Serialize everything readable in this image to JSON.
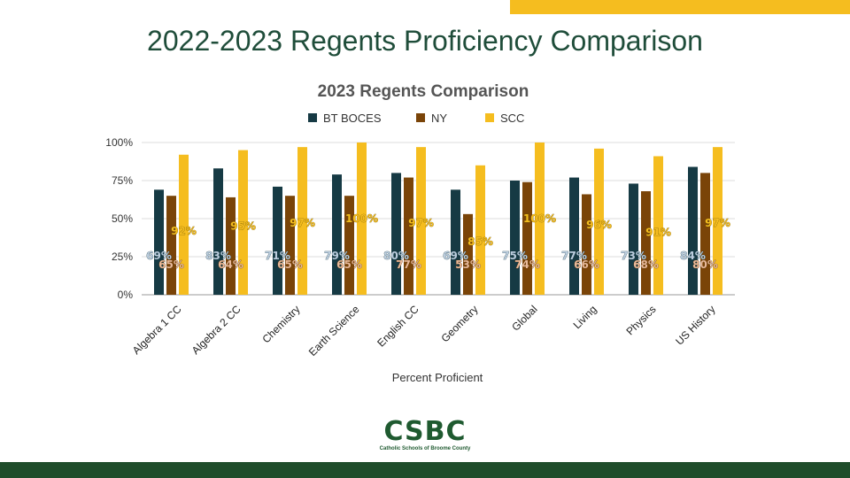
{
  "slide": {
    "title": "2022-2023 Regents Proficiency Comparison",
    "logo_text": "CSBC",
    "logo_subtitle": "Catholic Schools of Broome County"
  },
  "chart_data": {
    "type": "bar",
    "title": "2023 Regents Comparison",
    "xlabel": "Percent Proficient",
    "ylabel": "",
    "ylim": [
      0,
      100
    ],
    "yticks": [
      "0%",
      "25%",
      "50%",
      "75%",
      "100%"
    ],
    "ytick_values": [
      0,
      25,
      50,
      75,
      100
    ],
    "grid": true,
    "legend": "top",
    "categories": [
      "Algebra 1 CC",
      "Algebra 2 CC",
      "Chemistry",
      "Earth Science",
      "English CC",
      "Geometry",
      "Global",
      "Living",
      "Physics",
      "US History"
    ],
    "series": [
      {
        "name": "BT BOCES",
        "color": "#163a44",
        "values": [
          69,
          83,
          71,
          79,
          80,
          69,
          75,
          77,
          73,
          84
        ]
      },
      {
        "name": "NY",
        "color": "#7a4408",
        "values": [
          65,
          64,
          65,
          65,
          77,
          53,
          74,
          66,
          68,
          80
        ]
      },
      {
        "name": "SCC",
        "color": "#f5bd1f",
        "values": [
          92,
          95,
          97,
          100,
          97,
          85,
          100,
          96,
          91,
          97
        ]
      }
    ]
  },
  "colors": {
    "accent_gold": "#f5bd1f",
    "brand_green": "#1f4d2b"
  }
}
